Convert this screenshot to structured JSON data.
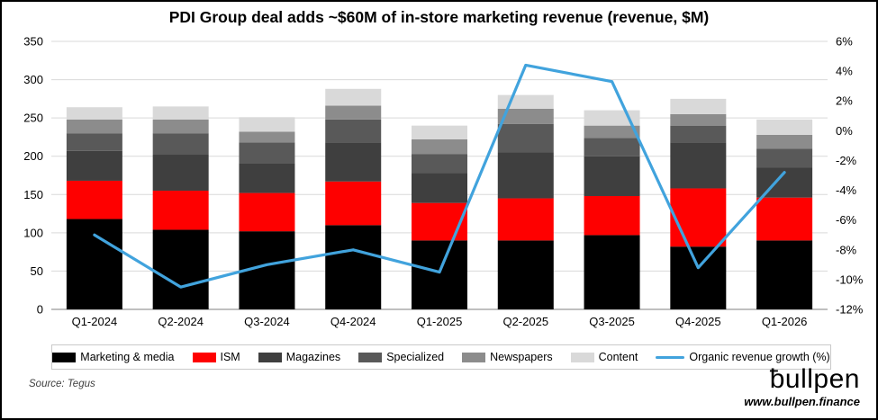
{
  "title": "PDI Group deal adds ~$60M of in-store marketing revenue (revenue, $M)",
  "source": "Source: Tegus",
  "branding": {
    "logo": "ƀullpen",
    "url": "www.bullpen.finance"
  },
  "chart_data": {
    "type": "bar",
    "subtype": "stacked-bar-with-line",
    "categories": [
      "Q1-2024",
      "Q2-2024",
      "Q3-2024",
      "Q4-2024",
      "Q1-2025",
      "Q2-2025",
      "Q3-2025",
      "Q4-2025",
      "Q1-2026"
    ],
    "series": [
      {
        "name": "Marketing & media",
        "color": "#000000",
        "values": [
          118,
          104,
          102,
          110,
          90,
          90,
          97,
          82,
          90
        ]
      },
      {
        "name": "ISM",
        "color": "#fe0000",
        "values": [
          50,
          51,
          50,
          57,
          49,
          55,
          51,
          76,
          56
        ]
      },
      {
        "name": "Magazines",
        "color": "#3f3f3f",
        "values": [
          39,
          47,
          39,
          51,
          39,
          60,
          52,
          60,
          39
        ]
      },
      {
        "name": "Specialized",
        "color": "#595959",
        "values": [
          23,
          28,
          27,
          30,
          25,
          37,
          24,
          22,
          25
        ]
      },
      {
        "name": "Newspapers",
        "color": "#8c8c8c",
        "values": [
          18,
          18,
          14,
          18,
          19,
          20,
          16,
          15,
          18
        ]
      },
      {
        "name": "Content",
        "color": "#d9d9d9",
        "values": [
          16,
          17,
          19,
          22,
          18,
          18,
          20,
          20,
          20
        ]
      }
    ],
    "line_series": {
      "name": "Organic revenue growth (%)",
      "color": "#41a3dd",
      "values": [
        -7,
        -10.5,
        -9,
        -8,
        -9.5,
        4.4,
        3.3,
        -9.2,
        -2.8
      ]
    },
    "left_axis": {
      "min": 0,
      "max": 350,
      "step": 50
    },
    "right_axis": {
      "min": -12,
      "max": 6,
      "step": 2,
      "suffix": "%"
    },
    "grid": true,
    "legend_position": "bottom"
  }
}
